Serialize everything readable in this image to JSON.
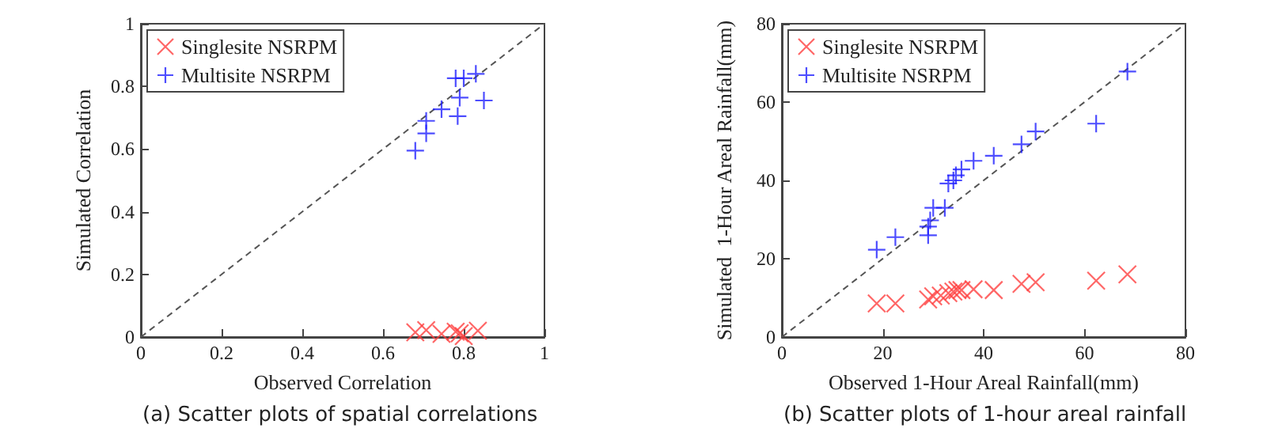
{
  "chart_data": [
    {
      "type": "scatter",
      "xlabel": "Observed Correlation",
      "ylabel": "Simulated Correlation",
      "annotations": [
        "(a) Scatter plots of spatial correlations"
      ],
      "xlim": [
        0,
        1
      ],
      "ylim": [
        0,
        1
      ],
      "xticks": [
        0,
        0.2,
        0.4,
        0.6,
        0.8,
        1
      ],
      "yticks": [
        0,
        0.2,
        0.4,
        0.6,
        0.8,
        1
      ],
      "grid": false,
      "legend": "top left",
      "series": [
        {
          "name": "Singlesite NSRPM",
          "color": "#ff4040",
          "marker": "cross",
          "x": [
            0.68,
            0.707,
            0.745,
            0.78,
            0.79,
            0.8,
            0.835
          ],
          "values": [
            0.015,
            0.022,
            0.01,
            0.017,
            0.012,
            0.003,
            0.02
          ]
        },
        {
          "name": "Multisite NSRPM",
          "color": "#2020ff",
          "marker": "plus",
          "x": [
            0.68,
            0.707,
            0.707,
            0.745,
            0.78,
            0.8,
            0.79,
            0.785,
            0.83,
            0.85
          ],
          "values": [
            0.595,
            0.69,
            0.65,
            0.727,
            0.826,
            0.826,
            0.764,
            0.705,
            0.84,
            0.755
          ]
        },
        {
          "type": "line",
          "color": "#555555",
          "marker": "none",
          "line_style": "dashed",
          "x": [
            0,
            1
          ],
          "values": [
            0,
            1
          ]
        }
      ]
    },
    {
      "type": "scatter",
      "xlabel": "Observed 1-Hour Areal Rainfall(mm)",
      "ylabel": "Simulated  1-Hour Areal Rainfall(mm)",
      "annotations": [
        "(b) Scatter plots of 1-hour areal rainfall"
      ],
      "xlim": [
        0,
        80
      ],
      "ylim": [
        0,
        80
      ],
      "xticks": [
        0,
        20,
        40,
        60,
        80
      ],
      "yticks": [
        0,
        20,
        40,
        60,
        80
      ],
      "grid": false,
      "legend": "top left",
      "series": [
        {
          "name": "Singlesite NSRPM",
          "color": "#ff4040",
          "marker": "cross",
          "x": [
            18.8,
            22.5,
            29,
            30,
            31.5,
            33,
            34,
            34.8,
            35.6,
            38,
            42,
            47.5,
            50.3,
            62.3,
            68.5
          ],
          "values": [
            8.6,
            8.6,
            9.6,
            10.4,
            10.6,
            11.2,
            11.6,
            12,
            12,
            12.2,
            12,
            13.6,
            14,
            14.4,
            16
          ]
        },
        {
          "name": "Multisite NSRPM",
          "color": "#2020ff",
          "marker": "plus",
          "x": [
            18.8,
            22.5,
            29,
            29,
            29.4,
            30,
            32.3,
            33,
            34,
            34.5,
            35.6,
            38,
            42,
            47.5,
            50.3,
            62.3,
            68.5
          ],
          "values": [
            22.3,
            25.5,
            26,
            28.2,
            29.8,
            33,
            33,
            39.2,
            40,
            41.3,
            42.8,
            45,
            46.3,
            49.2,
            52.5,
            54.5,
            67.8
          ]
        },
        {
          "type": "line",
          "color": "#555555",
          "marker": "none",
          "line_style": "dashed",
          "x": [
            0,
            80
          ],
          "values": [
            0,
            80
          ]
        }
      ]
    }
  ]
}
